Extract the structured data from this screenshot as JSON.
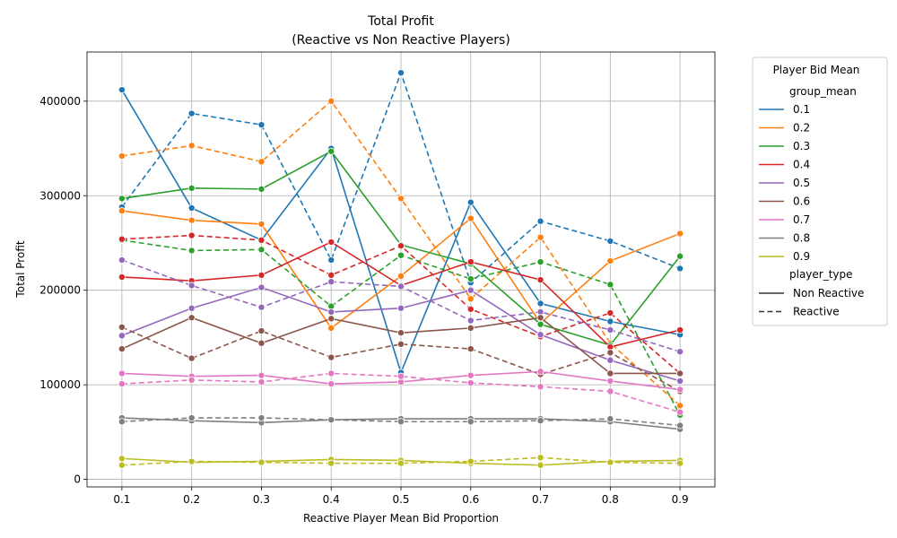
{
  "chart_data": {
    "type": "line",
    "title": "Total Profit",
    "subtitle": "(Reactive vs Non Reactive Players)",
    "xlabel": "Reactive Player Mean Bid Proportion",
    "ylabel": "Total Profit",
    "x": [
      0.1,
      0.2,
      0.3,
      0.4,
      0.5,
      0.6,
      0.7,
      0.8,
      0.9
    ],
    "x_tick_labels": [
      "0.1",
      "0.2",
      "0.3",
      "0.4",
      "0.5",
      "0.6",
      "0.7",
      "0.8",
      "0.9"
    ],
    "y_ticks": [
      0,
      100000,
      200000,
      300000,
      400000
    ],
    "y_tick_labels": [
      "0",
      "100000",
      "200000",
      "300000",
      "400000"
    ],
    "xlim": [
      0.05,
      0.95
    ],
    "ylim": [
      -8000,
      452000
    ],
    "grid": true,
    "legend": {
      "title": "Player Bid Mean",
      "placement": "outside-right",
      "hue_label": "group_mean",
      "style_label": "player_type",
      "styles": [
        {
          "name": "Non Reactive",
          "dash": "solid"
        },
        {
          "name": "Reactive",
          "dash": "dashed"
        }
      ]
    },
    "groups": [
      {
        "name": "0.1",
        "color": "#1f77b4",
        "non_reactive": [
          412000,
          287000,
          253000,
          350000,
          113000,
          293000,
          186000,
          167000,
          153000
        ],
        "reactive": [
          288000,
          387000,
          375000,
          232000,
          430000,
          208000,
          273000,
          252000,
          223000
        ]
      },
      {
        "name": "0.2",
        "color": "#ff7f0e",
        "non_reactive": [
          284000,
          274000,
          270000,
          160000,
          215000,
          276000,
          165000,
          231000,
          260000
        ],
        "reactive": [
          342000,
          353000,
          336000,
          400000,
          297000,
          191000,
          256000,
          144000,
          78000
        ]
      },
      {
        "name": "0.3",
        "color": "#2ca02c",
        "non_reactive": [
          297000,
          308000,
          307000,
          347000,
          248000,
          228000,
          164000,
          142000,
          236000
        ],
        "reactive": [
          253000,
          242000,
          243000,
          183000,
          237000,
          212000,
          230000,
          206000,
          68000
        ]
      },
      {
        "name": "0.4",
        "color": "#d62728",
        "non_reactive": [
          214000,
          210000,
          216000,
          251000,
          205000,
          230000,
          211000,
          140000,
          158000
        ],
        "reactive": [
          254000,
          258000,
          253000,
          216000,
          247000,
          180000,
          151000,
          176000,
          112000
        ]
      },
      {
        "name": "0.5",
        "color": "#9467bd",
        "non_reactive": [
          152000,
          181000,
          203000,
          177000,
          181000,
          200000,
          153000,
          126000,
          104000
        ],
        "reactive": [
          232000,
          205000,
          182000,
          209000,
          204000,
          168000,
          177000,
          158000,
          135000
        ]
      },
      {
        "name": "0.6",
        "color": "#8c564b",
        "non_reactive": [
          138000,
          171000,
          144000,
          170000,
          155000,
          160000,
          171000,
          112000,
          112000
        ],
        "reactive": [
          161000,
          128000,
          157000,
          129000,
          143000,
          138000,
          111000,
          134000,
          93000
        ]
      },
      {
        "name": "0.7",
        "color": "#e377c2",
        "non_reactive": [
          112000,
          109000,
          110000,
          101000,
          103000,
          110000,
          114000,
          104000,
          95000
        ],
        "reactive": [
          101000,
          105000,
          103000,
          112000,
          109000,
          102000,
          98000,
          93000,
          71000
        ]
      },
      {
        "name": "0.8",
        "color": "#7f7f7f",
        "non_reactive": [
          65000,
          62000,
          60000,
          63000,
          64000,
          64000,
          64000,
          61000,
          53000
        ],
        "reactive": [
          61000,
          65000,
          65000,
          63000,
          61000,
          61000,
          62000,
          64000,
          57000
        ]
      },
      {
        "name": "0.9",
        "color": "#bcbd22",
        "non_reactive": [
          22000,
          18000,
          19000,
          21000,
          20000,
          17000,
          15000,
          19000,
          20000
        ],
        "reactive": [
          15000,
          19000,
          18000,
          17000,
          17000,
          19000,
          23000,
          18000,
          17000
        ]
      }
    ]
  }
}
